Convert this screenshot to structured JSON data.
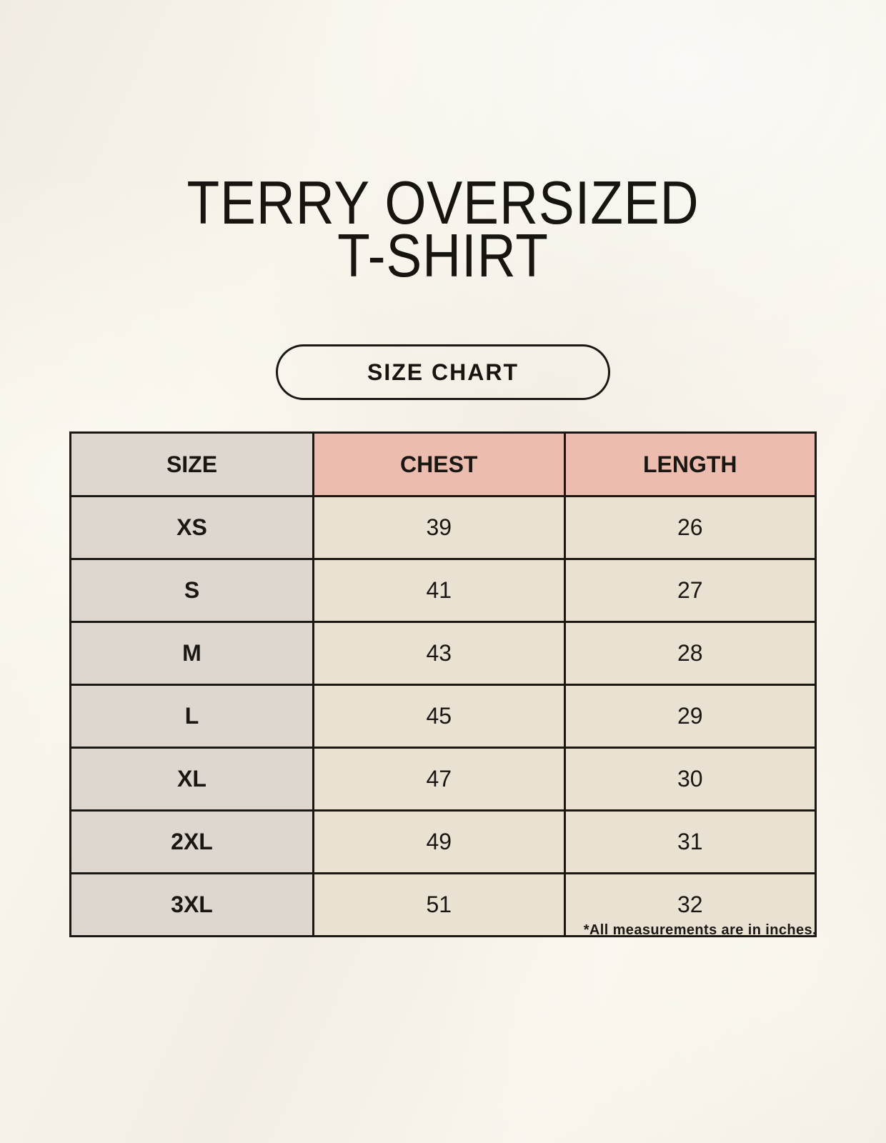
{
  "header": {
    "title_line1": "TERRY OVERSIZED",
    "title_line2": "T-SHIRT",
    "button_label": "SIZE CHART"
  },
  "chart_data": {
    "type": "table",
    "title": "TERRY OVERSIZED T-SHIRT",
    "columns": [
      "SIZE",
      "CHEST",
      "LENGTH"
    ],
    "rows": [
      [
        "XS",
        39,
        26
      ],
      [
        "S",
        41,
        27
      ],
      [
        "M",
        43,
        28
      ],
      [
        "L",
        45,
        29
      ],
      [
        "XL",
        47,
        30
      ],
      [
        "2XL",
        49,
        31
      ],
      [
        "3XL",
        51,
        32
      ]
    ],
    "units": "inches",
    "note": "*All measurements are in inches."
  },
  "colors": {
    "page_background": "#f6f2e9",
    "header_pink": "#ecbcae",
    "size_column_gray": "#ded7cf",
    "cell_cream": "#e9e2d3",
    "table_border": "#1b1713",
    "text": "#1a1712"
  }
}
